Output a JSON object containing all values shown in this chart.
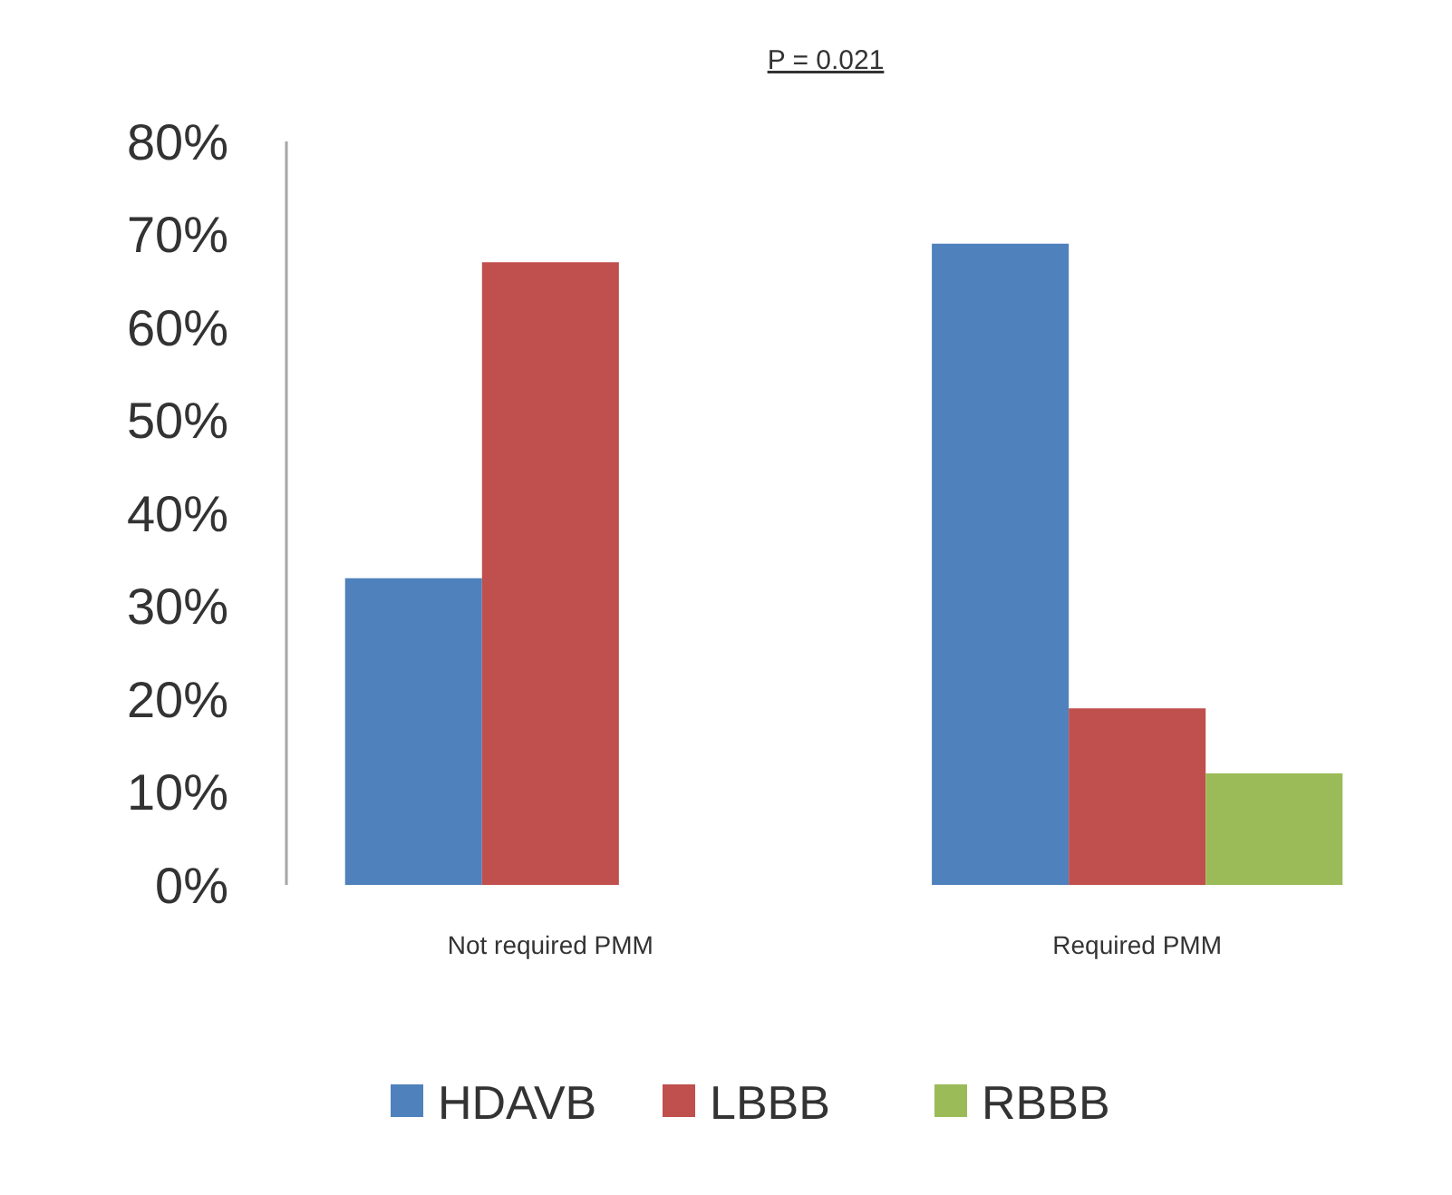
{
  "chart_data": {
    "type": "bar",
    "categories": [
      "Not required PMM",
      "Required PMM"
    ],
    "series": [
      {
        "name": "HDAVB",
        "color": "#4f81bd",
        "values": [
          33,
          69
        ]
      },
      {
        "name": "LBBB",
        "color": "#c0504d",
        "values": [
          67,
          19
        ]
      },
      {
        "name": "RBBB",
        "color": "#9bbb59",
        "values": [
          0,
          12
        ]
      }
    ],
    "ylim": [
      0,
      80
    ],
    "yticks": [
      {
        "value": 0,
        "label": "0%"
      },
      {
        "value": 10,
        "label": "10%"
      },
      {
        "value": 20,
        "label": "20%"
      },
      {
        "value": 30,
        "label": "30%"
      },
      {
        "value": 40,
        "label": "40%"
      },
      {
        "value": 50,
        "label": "50%"
      },
      {
        "value": 60,
        "label": "60%"
      },
      {
        "value": 70,
        "label": "70%"
      },
      {
        "value": 80,
        "label": "80%"
      }
    ],
    "annotations": [
      "P = 0.021"
    ],
    "grid": false,
    "legend": "bottom"
  }
}
